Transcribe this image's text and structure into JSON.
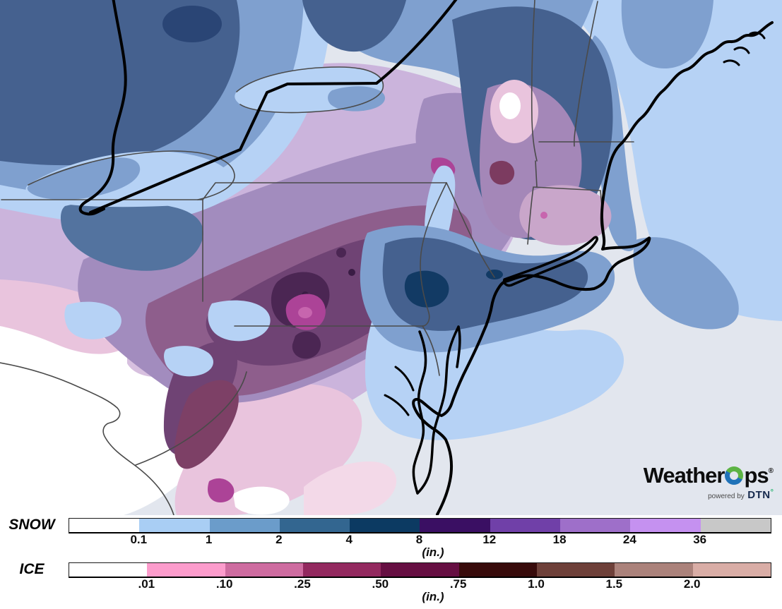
{
  "map": {
    "description": "Filled-contour snow and ice accumulation forecast map of the northeastern United States and southeastern Canada",
    "palette": {
      "ocean": "#E2E6EE",
      "land_white": "#FFFFFF",
      "light_blue": "#B6D2F5",
      "medium_blue": "#7FA0CF",
      "steel_blue": "#45618F",
      "steel_blue2": "#53739F",
      "navy": "#123A64",
      "navy_soft": "#2A4575",
      "lavender_light": "#D7C0DF",
      "lavender": "#CBB4DC",
      "mid_purple": "#A28CBE",
      "red_purple": "#8E5E8C",
      "plum": "#6F4374",
      "dark_plum": "#4B2653",
      "deep_plum": "#3A1C44",
      "maroon_purple": "#7D4066",
      "maroon_small": "#7C3B60",
      "magenta": "#AC4397",
      "magenta_light": "#C765AE",
      "pink": "#E9C4DD",
      "pale_pink": "#F3D9E8",
      "pink_lavender": "#C9A6CA",
      "vt_purple": "#A487B8",
      "border_black": "#000000",
      "line_gray": "#4A4A4A"
    }
  },
  "logo": {
    "brand_prefix": "Weather",
    "brand_suffix": "ps",
    "registered": "®",
    "powered_by": "powered by",
    "dtn": "DTN",
    "dtn_degree": "°",
    "o_blue": "#1F72B8",
    "o_green": "#5CB344"
  },
  "legends": [
    {
      "id": "snow",
      "label": "SNOW",
      "unit": "(in.)",
      "ticks": [
        "0.1",
        "1",
        "2",
        "4",
        "8",
        "12",
        "18",
        "24",
        "36"
      ],
      "colors": [
        "#FFFFFF",
        "#A9CEF4",
        "#6B9CCA",
        "#336690",
        "#0C3A62",
        "#3A0F63",
        "#7040A8",
        "#9E6FC9",
        "#C591F0",
        "#C8C8C8"
      ]
    },
    {
      "id": "ice",
      "label": "ICE",
      "unit": "(in.)",
      "ticks": [
        ".01",
        ".10",
        ".25",
        ".50",
        ".75",
        "1.0",
        "1.5",
        "2.0"
      ],
      "colors": [
        "#FFFFFF",
        "#FC9CCC",
        "#CE6CA0",
        "#93295F",
        "#660F42",
        "#380B0B",
        "#6E4039",
        "#AB827B",
        "#D9ADA6"
      ]
    }
  ]
}
